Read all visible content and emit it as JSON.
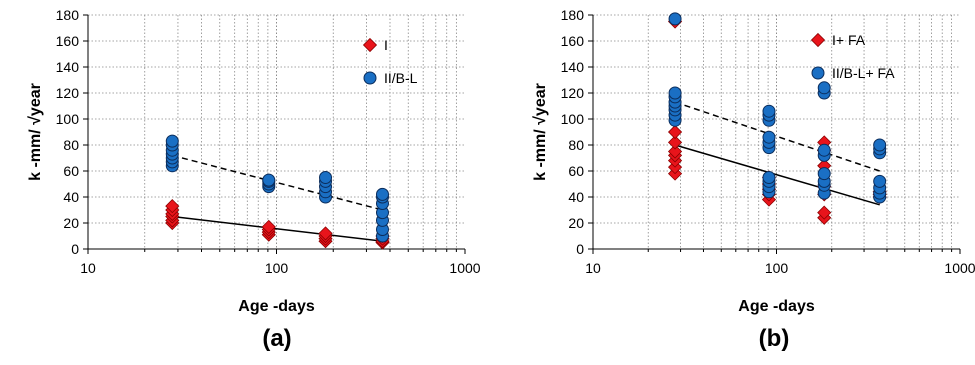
{
  "chart_data": [
    {
      "type": "scatter",
      "panel_label": "(a)",
      "xlabel": "Age -days",
      "ylabel": "k -mm/ √year",
      "xscale": "log",
      "xlim": [
        10,
        1000
      ],
      "ylim": [
        0,
        180
      ],
      "x_ticks": [
        "10",
        "100",
        "1000"
      ],
      "y_ticks": [
        "0",
        "20",
        "40",
        "60",
        "80",
        "100",
        "120",
        "140",
        "160",
        "180"
      ],
      "grid": true,
      "legend_position": "top-right",
      "series": [
        {
          "name": "I",
          "marker": "diamond",
          "color": "#e8141b",
          "points": [
            [
              28,
              20
            ],
            [
              28,
              22
            ],
            [
              28,
              25
            ],
            [
              28,
              27
            ],
            [
              28,
              30
            ],
            [
              28,
              33
            ],
            [
              91,
              11
            ],
            [
              91,
              13
            ],
            [
              91,
              15
            ],
            [
              91,
              17
            ],
            [
              182,
              6
            ],
            [
              182,
              8
            ],
            [
              182,
              10
            ],
            [
              182,
              12
            ],
            [
              365,
              5
            ],
            [
              365,
              6
            ],
            [
              365,
              8
            ],
            [
              365,
              10
            ]
          ]
        },
        {
          "name": "II/B-L",
          "marker": "circle",
          "color": "#1a6fc4",
          "points": [
            [
              28,
              64
            ],
            [
              28,
              67
            ],
            [
              28,
              70
            ],
            [
              28,
              73
            ],
            [
              28,
              76
            ],
            [
              28,
              80
            ],
            [
              28,
              83
            ],
            [
              91,
              48
            ],
            [
              91,
              50
            ],
            [
              91,
              52
            ],
            [
              91,
              53
            ],
            [
              182,
              40
            ],
            [
              182,
              44
            ],
            [
              182,
              48
            ],
            [
              182,
              52
            ],
            [
              182,
              55
            ],
            [
              365,
              10
            ],
            [
              365,
              15
            ],
            [
              365,
              22
            ],
            [
              365,
              28
            ],
            [
              365,
              35
            ],
            [
              365,
              40
            ],
            [
              365,
              42
            ]
          ]
        }
      ],
      "trendlines": [
        {
          "series": "I",
          "style": "solid",
          "from": [
            28,
            25
          ],
          "to": [
            365,
            6
          ]
        },
        {
          "series": "II/B-L",
          "style": "dashed",
          "from": [
            28,
            72
          ],
          "to": [
            365,
            30
          ]
        }
      ]
    },
    {
      "type": "scatter",
      "panel_label": "(b)",
      "xlabel": "Age -days",
      "ylabel": "k -mm/ √year",
      "xscale": "log",
      "xlim": [
        10,
        1000
      ],
      "ylim": [
        0,
        180
      ],
      "x_ticks": [
        "10",
        "100",
        "1000"
      ],
      "y_ticks": [
        "0",
        "20",
        "40",
        "60",
        "80",
        "100",
        "120",
        "140",
        "160",
        "180"
      ],
      "grid": true,
      "legend_position": "top-right",
      "series": [
        {
          "name": "I+ FA",
          "marker": "diamond",
          "color": "#e8141b",
          "points": [
            [
              28,
              58
            ],
            [
              28,
              63
            ],
            [
              28,
              68
            ],
            [
              28,
              72
            ],
            [
              28,
              75
            ],
            [
              28,
              82
            ],
            [
              28,
              90
            ],
            [
              28,
              175
            ],
            [
              91,
              38
            ],
            [
              91,
              42
            ],
            [
              91,
              46
            ],
            [
              91,
              50
            ],
            [
              91,
              55
            ],
            [
              182,
              24
            ],
            [
              182,
              28
            ],
            [
              182,
              42
            ],
            [
              182,
              48
            ],
            [
              182,
              64
            ],
            [
              182,
              76
            ],
            [
              182,
              82
            ],
            [
              365,
              40
            ],
            [
              365,
              42
            ],
            [
              365,
              44
            ]
          ]
        },
        {
          "name": "II/B-L+ FA",
          "marker": "circle",
          "color": "#1a6fc4",
          "points": [
            [
              28,
              99
            ],
            [
              28,
              103
            ],
            [
              28,
              107
            ],
            [
              28,
              110
            ],
            [
              28,
              113
            ],
            [
              28,
              117
            ],
            [
              28,
              120
            ],
            [
              28,
              177
            ],
            [
              91,
              44
            ],
            [
              91,
              48
            ],
            [
              91,
              52
            ],
            [
              91,
              55
            ],
            [
              91,
              78
            ],
            [
              91,
              82
            ],
            [
              91,
              86
            ],
            [
              91,
              99
            ],
            [
              91,
              103
            ],
            [
              91,
              106
            ],
            [
              182,
              43
            ],
            [
              182,
              49
            ],
            [
              182,
              52
            ],
            [
              182,
              58
            ],
            [
              182,
              72
            ],
            [
              182,
              76
            ],
            [
              182,
              120
            ],
            [
              182,
              124
            ],
            [
              365,
              40
            ],
            [
              365,
              43
            ],
            [
              365,
              47
            ],
            [
              365,
              52
            ],
            [
              365,
              74
            ],
            [
              365,
              77
            ],
            [
              365,
              80
            ]
          ]
        }
      ],
      "trendlines": [
        {
          "series": "I+ FA",
          "style": "solid",
          "from": [
            28,
            80
          ],
          "to": [
            365,
            34
          ]
        },
        {
          "series": "II/B-L+ FA",
          "style": "dashed",
          "from": [
            28,
            113
          ],
          "to": [
            365,
            60
          ]
        }
      ]
    }
  ]
}
